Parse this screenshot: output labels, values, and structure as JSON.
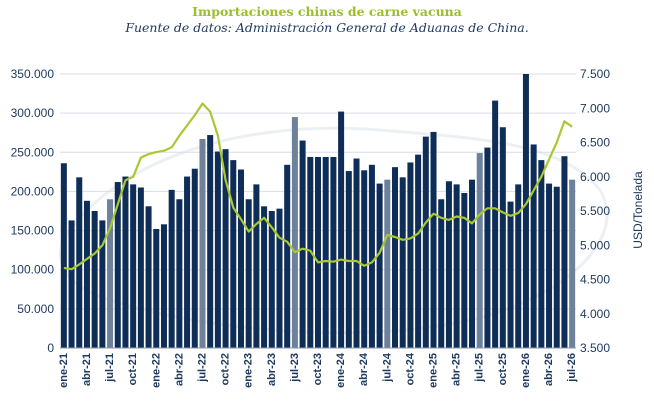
{
  "chart_data": {
    "type": "bar+line",
    "title": "Importaciones chinas de carne vacuna",
    "subtitle": "Fuente de datos: Administración General de Aduanas de China.",
    "xlabel": "",
    "ylabel": "",
    "y2label": "USD/Tonelada",
    "ylim": [
      0,
      350000
    ],
    "y2lim": [
      3500,
      7500
    ],
    "yticks": [
      "0",
      "50.000",
      "100.000",
      "150.000",
      "200.000",
      "250.000",
      "300.000",
      "350.000"
    ],
    "y2ticks": [
      "3.500",
      "4.000",
      "4.500",
      "5.000",
      "5.500",
      "6.000",
      "6.500",
      "7.000",
      "7.500"
    ],
    "xtick_labels": [
      "ene-21",
      "abr-21",
      "jul-21",
      "oct-21",
      "ene-22",
      "abr-22",
      "jul-22",
      "oct-22",
      "ene-23",
      "abr-23",
      "jul-23",
      "oct-23",
      "ene-24",
      "abr-24",
      "jul-24",
      "oct-24",
      "ene-25",
      "abr-25",
      "jul-25",
      "oct-25",
      "ene-26",
      "abr-26",
      "jul-26"
    ],
    "grid": true,
    "colors": {
      "bar_dark": "#0e2d57",
      "bar_light": "#6d819b",
      "line": "#a9c832",
      "axis_text": "#1f3a60"
    },
    "series": [
      {
        "type": "bar",
        "axis": "left",
        "values": [
          236000,
          163000,
          218000,
          188000,
          175000,
          163000,
          190000,
          212000,
          219000,
          209000,
          205000,
          181000,
          152000,
          158000,
          202000,
          190000,
          219000,
          229000,
          267000,
          272000,
          251000,
          254000,
          240000,
          228000,
          190000,
          209000,
          181000,
          175000,
          178000,
          234000,
          295000,
          265000,
          244000,
          244000,
          244000,
          244000,
          302000,
          226000,
          242000,
          227000,
          234000,
          210000,
          215000,
          231000,
          218000,
          237000,
          247000,
          270000,
          276000,
          190000,
          213000,
          209000,
          198000,
          215000,
          249000,
          256000,
          316000,
          282000,
          187000,
          209000,
          350000,
          260000,
          240000,
          210000,
          206000,
          245000,
          215000
        ],
        "highlight": [
          false,
          false,
          false,
          false,
          false,
          false,
          true,
          false,
          false,
          false,
          false,
          false,
          false,
          false,
          false,
          false,
          false,
          false,
          true,
          false,
          false,
          false,
          false,
          false,
          false,
          false,
          false,
          false,
          false,
          false,
          true,
          false,
          false,
          false,
          false,
          false,
          false,
          false,
          false,
          false,
          false,
          false,
          true,
          false,
          false,
          false,
          false,
          false,
          false,
          false,
          false,
          false,
          false,
          false,
          true,
          false,
          false,
          false,
          false,
          false,
          false,
          false,
          false,
          false,
          false,
          false,
          true
        ]
      },
      {
        "type": "line",
        "axis": "right",
        "values": [
          4670,
          4650,
          4720,
          4800,
          4880,
          5000,
          5250,
          5600,
          5950,
          6000,
          6280,
          6330,
          6360,
          6380,
          6430,
          6600,
          6750,
          6900,
          7070,
          6950,
          6600,
          5950,
          5550,
          5380,
          5200,
          5310,
          5400,
          5260,
          5110,
          5050,
          4900,
          4950,
          4920,
          4750,
          4770,
          4760,
          4790,
          4770,
          4770,
          4700,
          4750,
          4890,
          5150,
          5120,
          5080,
          5100,
          5170,
          5330,
          5460,
          5400,
          5370,
          5420,
          5400,
          5320,
          5450,
          5540,
          5540,
          5480,
          5430,
          5470,
          5600,
          5800,
          6000,
          6250,
          6500,
          6810,
          6730
        ]
      }
    ]
  }
}
